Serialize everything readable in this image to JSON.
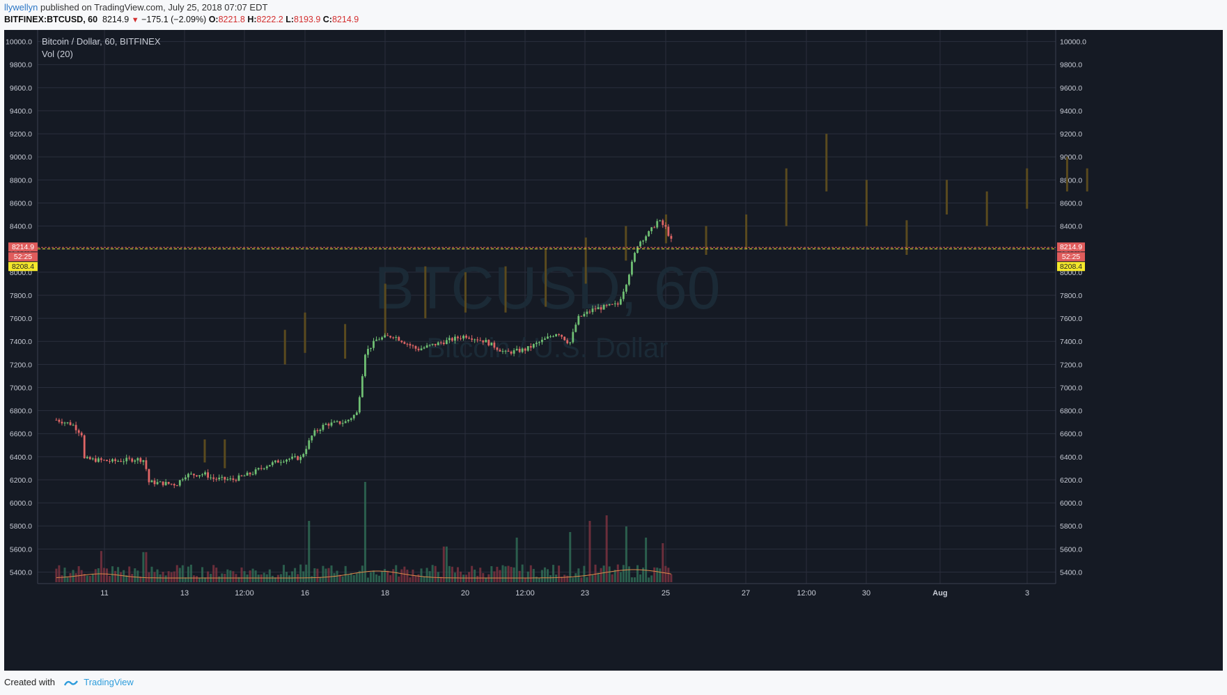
{
  "header": {
    "author": "llywellyn",
    "published_text": " published on TradingView.com, July 25, 2018 07:07 EDT",
    "symbol": "BITFINEX:BTCUSD, 60",
    "last": "8214.9",
    "change": "−175.1 (−2.09%)",
    "o_label": "O:",
    "o_value": "8221.8",
    "h_label": "H:",
    "h_value": "8222.2",
    "l_label": "L:",
    "l_value": "8193.9",
    "c_label": "C:",
    "c_value": "8214.9"
  },
  "chart_data": {
    "type": "candlestick",
    "title": "Bitcoin / Dollar, 60, BITFINEX",
    "indicator": "Vol (20)",
    "watermark_main": "BTCUSD, 60",
    "watermark_sub": "Bitcoin / U.S. Dollar",
    "ylim": [
      5300,
      10100
    ],
    "y_ticks": [
      5400,
      5600,
      5800,
      6000,
      6200,
      6400,
      6600,
      6800,
      7000,
      7200,
      7400,
      7600,
      7800,
      8000,
      8200,
      8400,
      8600,
      8800,
      9000,
      9200,
      9400,
      9600,
      9800,
      10000
    ],
    "x_ticks": [
      "11",
      "13",
      "12:00",
      "16",
      "18",
      "20",
      "12:00",
      "23",
      "25",
      "27",
      "12:00",
      "30",
      "Aug",
      "3"
    ],
    "price_labels": {
      "last": "8214.9",
      "countdown": "52:25",
      "line": "8208.4"
    },
    "price_path": [
      {
        "day": 9.8,
        "close": 6720
      },
      {
        "day": 10.2,
        "close": 6680
      },
      {
        "day": 10.45,
        "close": 6590
      },
      {
        "day": 10.5,
        "close": 6380
      },
      {
        "day": 11.2,
        "close": 6360
      },
      {
        "day": 11.8,
        "close": 6380
      },
      {
        "day": 12.0,
        "close": 6370
      },
      {
        "day": 12.1,
        "close": 6180
      },
      {
        "day": 12.8,
        "close": 6160
      },
      {
        "day": 13.0,
        "close": 6240
      },
      {
        "day": 13.5,
        "close": 6250
      },
      {
        "day": 13.7,
        "close": 6210
      },
      {
        "day": 14.2,
        "close": 6200
      },
      {
        "day": 14.7,
        "close": 6260
      },
      {
        "day": 15.0,
        "close": 6320
      },
      {
        "day": 15.5,
        "close": 6380
      },
      {
        "day": 15.9,
        "close": 6390
      },
      {
        "day": 16.2,
        "close": 6600
      },
      {
        "day": 16.5,
        "close": 6680
      },
      {
        "day": 17.0,
        "close": 6700
      },
      {
        "day": 17.3,
        "close": 6780
      },
      {
        "day": 17.5,
        "close": 7300
      },
      {
        "day": 17.8,
        "close": 7420
      },
      {
        "day": 18.2,
        "close": 7450
      },
      {
        "day": 18.8,
        "close": 7330
      },
      {
        "day": 19.5,
        "close": 7400
      },
      {
        "day": 20.0,
        "close": 7450
      },
      {
        "day": 20.5,
        "close": 7400
      },
      {
        "day": 21.0,
        "close": 7300
      },
      {
        "day": 21.5,
        "close": 7330
      },
      {
        "day": 22.0,
        "close": 7420
      },
      {
        "day": 22.3,
        "close": 7480
      },
      {
        "day": 22.6,
        "close": 7380
      },
      {
        "day": 22.8,
        "close": 7600
      },
      {
        "day": 23.2,
        "close": 7680
      },
      {
        "day": 23.8,
        "close": 7720
      },
      {
        "day": 24.0,
        "close": 7900
      },
      {
        "day": 24.3,
        "close": 8250
      },
      {
        "day": 24.6,
        "close": 8350
      },
      {
        "day": 24.8,
        "close": 8450
      },
      {
        "day": 25.0,
        "close": 8380
      },
      {
        "day": 25.2,
        "close": 8214.9
      }
    ],
    "projection": [
      {
        "day": 13.5,
        "low": 6350,
        "high": 6550
      },
      {
        "day": 14.0,
        "low": 6300,
        "high": 6550
      },
      {
        "day": 15.5,
        "low": 7200,
        "high": 7500
      },
      {
        "day": 16.0,
        "low": 7300,
        "high": 7650
      },
      {
        "day": 17.0,
        "low": 7250,
        "high": 7550
      },
      {
        "day": 18.0,
        "low": 7450,
        "high": 7900
      },
      {
        "day": 19.0,
        "low": 7600,
        "high": 8050
      },
      {
        "day": 20.0,
        "low": 7650,
        "high": 8000
      },
      {
        "day": 21.0,
        "low": 7650,
        "high": 8050
      },
      {
        "day": 22.0,
        "low": 7700,
        "high": 8200
      },
      {
        "day": 23.0,
        "low": 7900,
        "high": 8300
      },
      {
        "day": 24.0,
        "low": 8100,
        "high": 8400
      },
      {
        "day": 25.0,
        "low": 8250,
        "high": 8500
      },
      {
        "day": 26.0,
        "low": 8150,
        "high": 8400
      },
      {
        "day": 27.0,
        "low": 8200,
        "high": 8500
      },
      {
        "day": 28.0,
        "low": 8400,
        "high": 8900
      },
      {
        "day": 29.0,
        "low": 8700,
        "high": 9200
      },
      {
        "day": 30.0,
        "low": 8400,
        "high": 8800
      },
      {
        "day": 31.0,
        "low": 8150,
        "high": 8450
      },
      {
        "day": 32.0,
        "low": 8500,
        "high": 8800
      },
      {
        "day": 33.0,
        "low": 8400,
        "high": 8700
      },
      {
        "day": 34.0,
        "low": 8550,
        "high": 8900
      },
      {
        "day": 35.0,
        "low": 8700,
        "high": 9000
      },
      {
        "day": 35.5,
        "low": 8700,
        "high": 8900
      }
    ],
    "volume_spikes": [
      {
        "day": 16.1,
        "value": 0.55
      },
      {
        "day": 17.5,
        "value": 0.9
      },
      {
        "day": 21.3,
        "value": 0.4
      },
      {
        "day": 23.1,
        "value": 0.55
      },
      {
        "day": 23.5,
        "value": 0.6
      },
      {
        "day": 24.0,
        "value": 0.5
      },
      {
        "day": 24.5,
        "value": 0.4
      },
      {
        "day": 24.9,
        "value": 0.35
      },
      {
        "day": 19.5,
        "value": 0.32
      },
      {
        "day": 12.0,
        "value": 0.27
      },
      {
        "day": 10.9,
        "value": 0.28
      },
      {
        "day": 22.6,
        "value": 0.45
      }
    ],
    "colors": {
      "background": "#151a24",
      "grid": "#2a2f3d",
      "up": "#6fbf73",
      "down": "#e06666",
      "projection": "#5a4a1e",
      "last_price": "#e05c5c",
      "price_line": "#f5e82b",
      "axis_text": "#c8ccd6"
    }
  },
  "footer": {
    "created_with": "Created with",
    "brand": "TradingView"
  }
}
